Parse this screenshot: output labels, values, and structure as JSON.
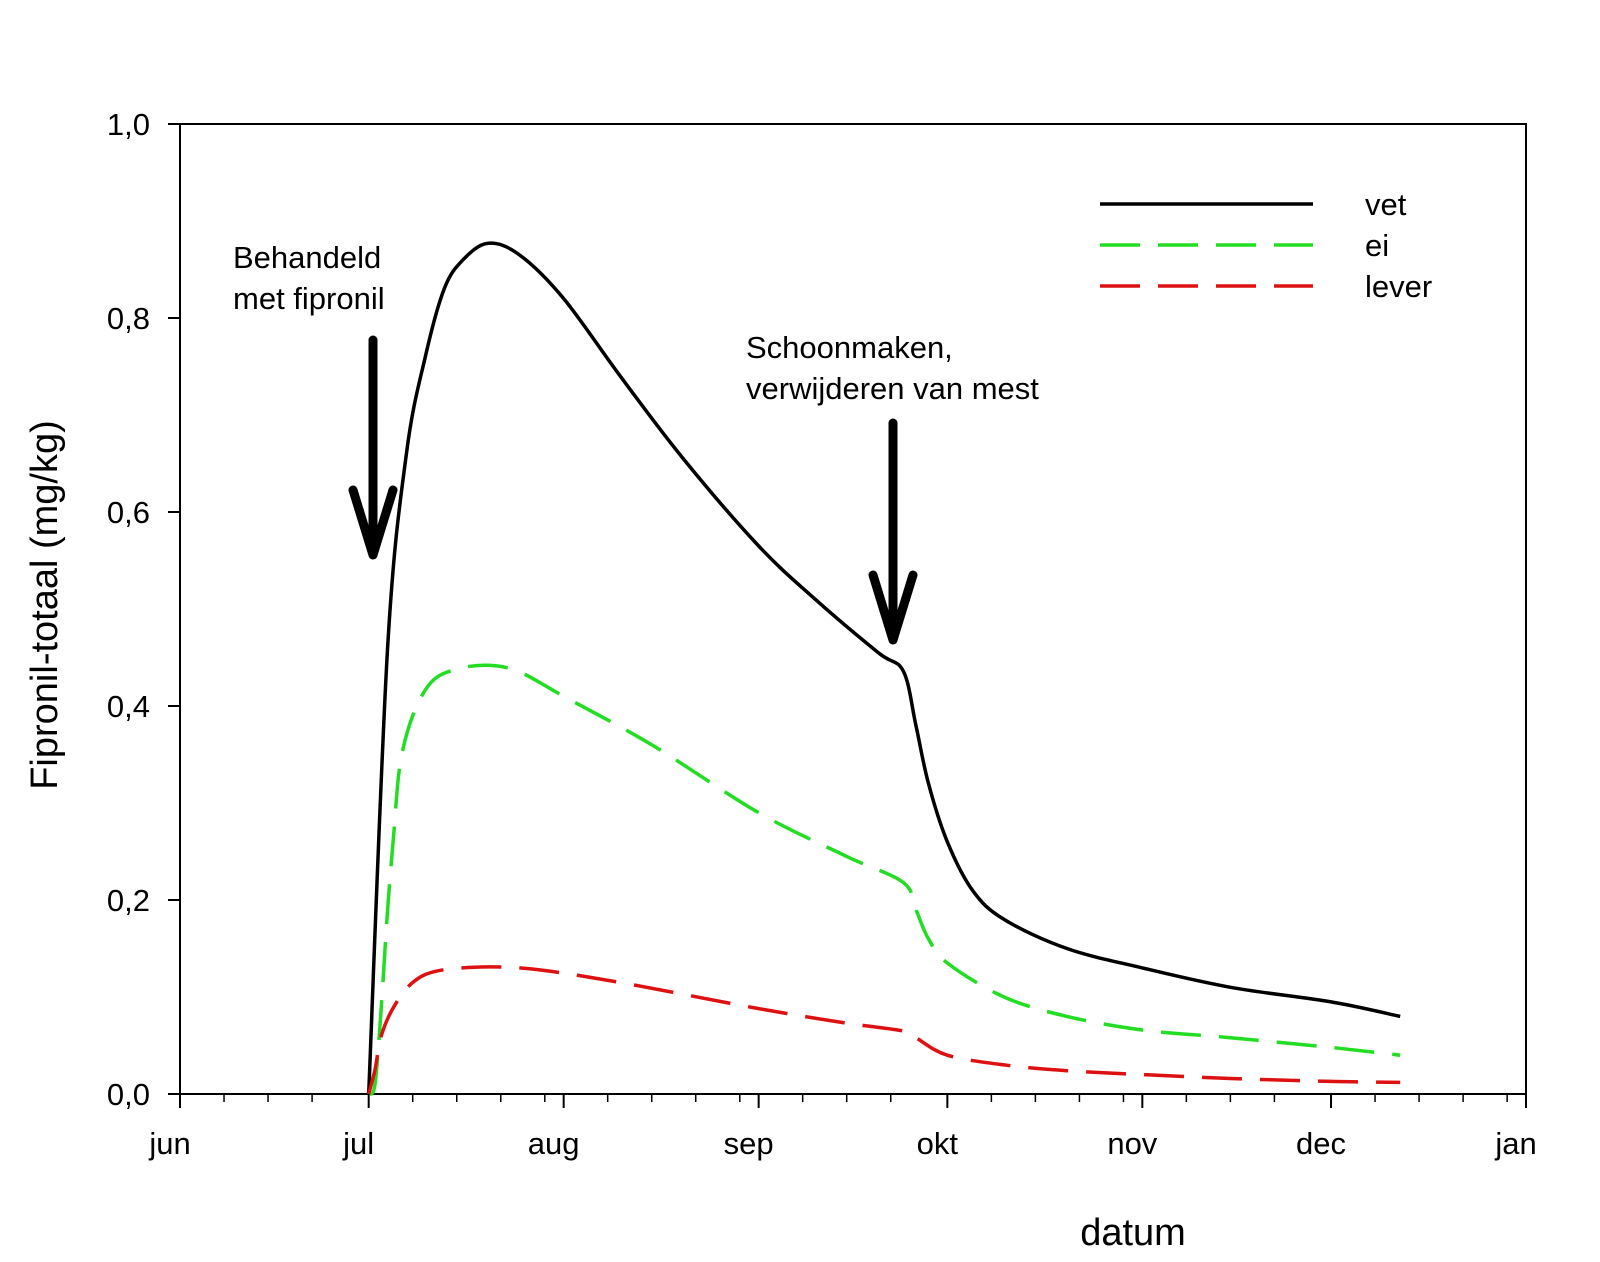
{
  "chart_data": {
    "type": "line",
    "title": "",
    "xlabel": "datum",
    "ylabel": "Fipronil-totaal (mg/kg)",
    "x_ticks": [
      "jun",
      "jul",
      "aug",
      "sep",
      "okt",
      "nov",
      "dec",
      "jan"
    ],
    "y_ticks": [
      "0,0",
      "0,2",
      "0,4",
      "0,6",
      "0,8",
      "1,0"
    ],
    "ylim": [
      0,
      1
    ],
    "grid": false,
    "legend_position": "top-right",
    "series": [
      {
        "name": "vet",
        "color": "#000000",
        "style": "solid",
        "points": [
          [
            "2017-07-01",
            0.0
          ],
          [
            "2017-07-04",
            0.46
          ],
          [
            "2017-07-07",
            0.66
          ],
          [
            "2017-07-10",
            0.76
          ],
          [
            "2017-07-13",
            0.83
          ],
          [
            "2017-07-16",
            0.86
          ],
          [
            "2017-07-20",
            0.877
          ],
          [
            "2017-07-25",
            0.865
          ],
          [
            "2017-08-01",
            0.82
          ],
          [
            "2017-08-10",
            0.74
          ],
          [
            "2017-08-20",
            0.655
          ],
          [
            "2017-09-01",
            0.565
          ],
          [
            "2017-09-10",
            0.51
          ],
          [
            "2017-09-20",
            0.455
          ],
          [
            "2017-09-24",
            0.436
          ],
          [
            "2017-09-26",
            0.38
          ],
          [
            "2017-09-28",
            0.32
          ],
          [
            "2017-10-01",
            0.26
          ],
          [
            "2017-10-05",
            0.21
          ],
          [
            "2017-10-10",
            0.18
          ],
          [
            "2017-10-20",
            0.15
          ],
          [
            "2017-11-01",
            0.13
          ],
          [
            "2017-11-15",
            0.11
          ],
          [
            "2017-12-01",
            0.095
          ],
          [
            "2017-12-12",
            0.08
          ]
        ]
      },
      {
        "name": "ei",
        "color": "#22dd22",
        "style": "dashed",
        "points": [
          [
            "2017-07-01",
            0.0
          ],
          [
            "2017-07-02",
            0.01
          ],
          [
            "2017-07-03",
            0.09
          ],
          [
            "2017-07-04",
            0.19
          ],
          [
            "2017-07-05",
            0.27
          ],
          [
            "2017-07-06",
            0.34
          ],
          [
            "2017-07-08",
            0.39
          ],
          [
            "2017-07-11",
            0.425
          ],
          [
            "2017-07-15",
            0.438
          ],
          [
            "2017-07-20",
            0.442
          ],
          [
            "2017-07-25",
            0.435
          ],
          [
            "2017-08-01",
            0.41
          ],
          [
            "2017-08-15",
            0.36
          ],
          [
            "2017-09-01",
            0.29
          ],
          [
            "2017-09-15",
            0.245
          ],
          [
            "2017-09-24",
            0.218
          ],
          [
            "2017-09-26",
            0.19
          ],
          [
            "2017-09-28",
            0.16
          ],
          [
            "2017-10-01",
            0.135
          ],
          [
            "2017-10-10",
            0.1
          ],
          [
            "2017-10-20",
            0.08
          ],
          [
            "2017-11-01",
            0.066
          ],
          [
            "2017-11-15",
            0.058
          ],
          [
            "2017-12-01",
            0.048
          ],
          [
            "2017-12-12",
            0.04
          ]
        ]
      },
      {
        "name": "lever",
        "color": "#dd1111",
        "style": "dashed",
        "points": [
          [
            "2017-07-01",
            0.0
          ],
          [
            "2017-07-02",
            0.025
          ],
          [
            "2017-07-03",
            0.06
          ],
          [
            "2017-07-05",
            0.09
          ],
          [
            "2017-07-08",
            0.115
          ],
          [
            "2017-07-12",
            0.127
          ],
          [
            "2017-07-20",
            0.131
          ],
          [
            "2017-07-28",
            0.128
          ],
          [
            "2017-08-10",
            0.115
          ],
          [
            "2017-09-01",
            0.088
          ],
          [
            "2017-09-15",
            0.073
          ],
          [
            "2017-09-24",
            0.065
          ],
          [
            "2017-09-26",
            0.058
          ],
          [
            "2017-10-01",
            0.04
          ],
          [
            "2017-10-10",
            0.03
          ],
          [
            "2017-10-20",
            0.024
          ],
          [
            "2017-11-01",
            0.02
          ],
          [
            "2017-11-15",
            0.016
          ],
          [
            "2017-12-01",
            0.013
          ],
          [
            "2017-12-12",
            0.012
          ]
        ]
      }
    ],
    "annotations": [
      {
        "lines": [
          "Behandeld",
          "met fipronil"
        ],
        "arrow_at": "2017-07-01"
      },
      {
        "lines": [
          "Schoonmaken,",
          "verwijderen van mest"
        ],
        "arrow_at": "2017-09-24"
      }
    ]
  }
}
